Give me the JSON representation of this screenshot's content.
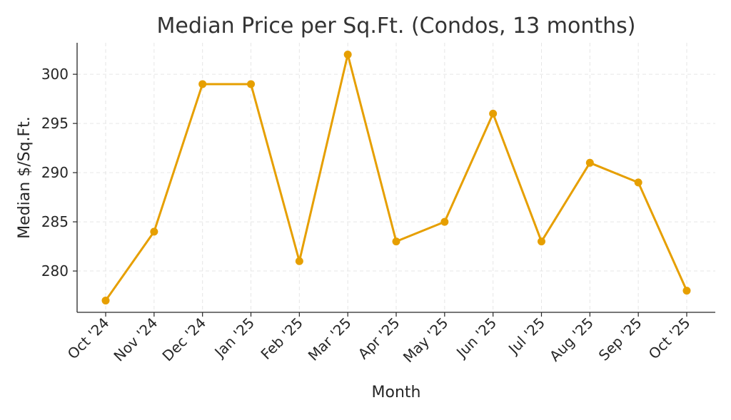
{
  "chart_data": {
    "type": "line",
    "title": "Median Price per Sq.Ft. (Condos, 13 months)",
    "xlabel": "Month",
    "ylabel": "Median $/Sq.Ft.",
    "categories": [
      "Oct '24",
      "Nov '24",
      "Dec '24",
      "Jan '25",
      "Feb '25",
      "Mar '25",
      "Apr '25",
      "May '25",
      "Jun '25",
      "Jul '25",
      "Aug '25",
      "Sep '25",
      "Oct '25"
    ],
    "values": [
      277,
      284,
      299,
      299,
      281,
      302,
      283,
      285,
      296,
      283,
      291,
      289,
      278
    ],
    "yticks": [
      280,
      285,
      290,
      295,
      300
    ],
    "ylim": [
      275.8,
      303.2
    ],
    "grid": true,
    "line_color": "#E69F00",
    "marker": "circle"
  }
}
